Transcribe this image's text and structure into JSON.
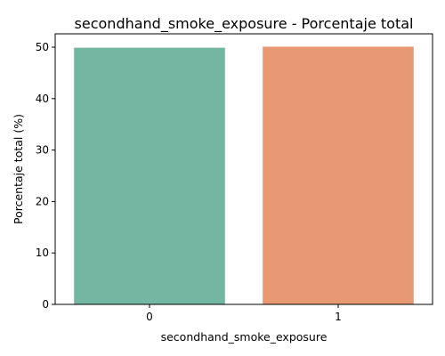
{
  "chart_data": {
    "type": "bar",
    "title": "secondhand_smoke_exposure - Porcentaje total",
    "xlabel": "secondhand_smoke_exposure",
    "ylabel": "Porcentaje total (%)",
    "categories": [
      "0",
      "1"
    ],
    "values": [
      49.9,
      50.1
    ],
    "colors": [
      "#73b6a1",
      "#e99874"
    ],
    "ylim": [
      0,
      52.6
    ],
    "yticks": [
      0,
      10,
      20,
      30,
      40,
      50
    ],
    "grid": false
  }
}
